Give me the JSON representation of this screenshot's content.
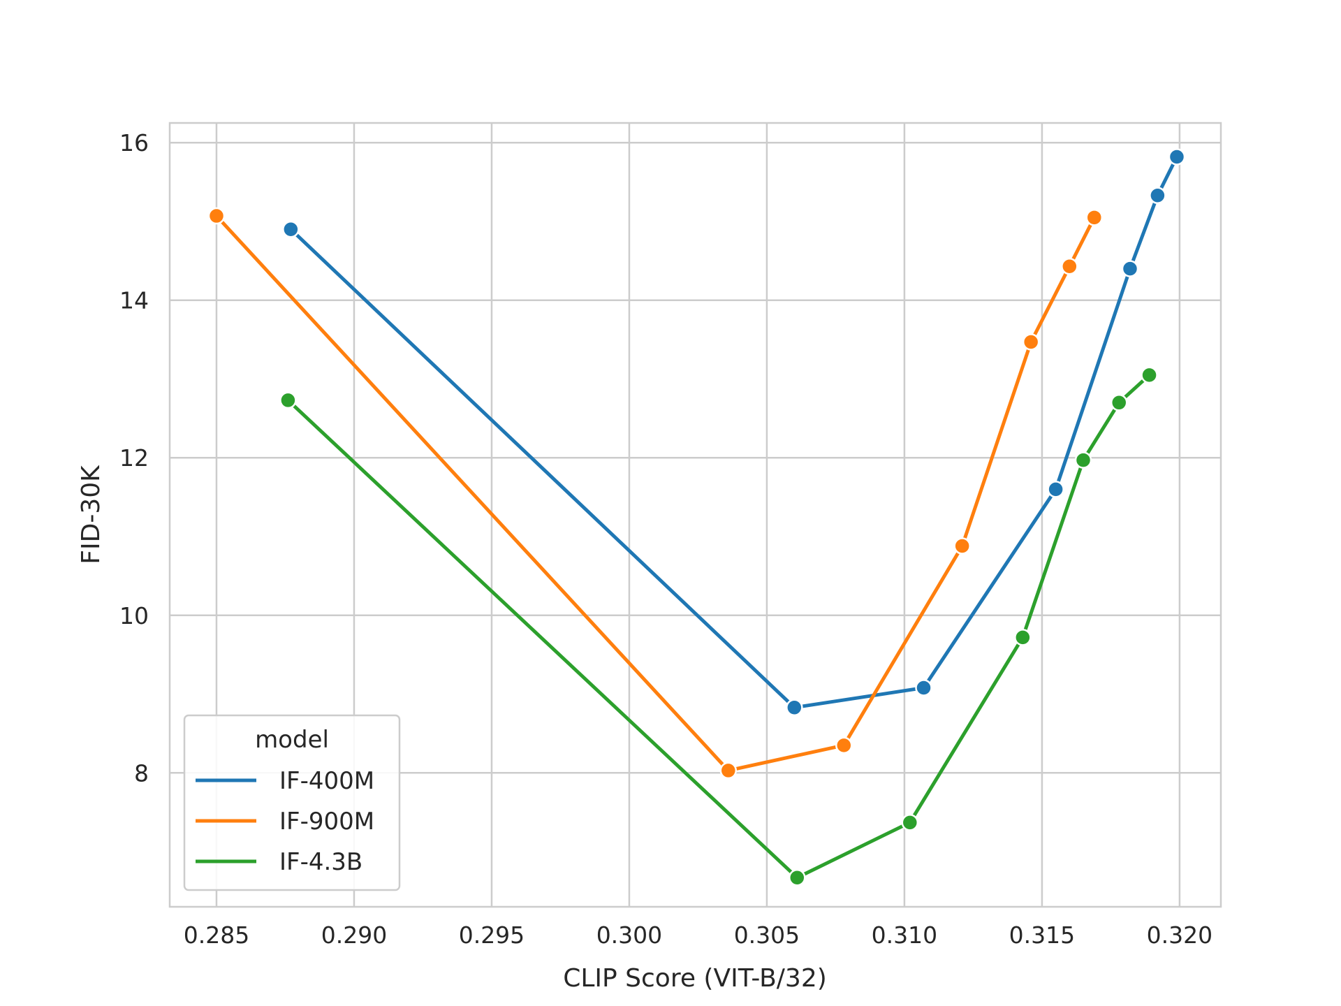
{
  "chart_data": {
    "type": "line",
    "xlabel": "CLIP Score (VIT-B/32)",
    "ylabel": "FID-30K",
    "xlim": [
      0.2833,
      0.3215
    ],
    "ylim": [
      6.3,
      16.25
    ],
    "xticks": [
      0.285,
      0.29,
      0.295,
      0.3,
      0.305,
      0.31,
      0.315,
      0.32
    ],
    "xtick_labels": [
      "0.285",
      "0.290",
      "0.295",
      "0.300",
      "0.305",
      "0.310",
      "0.315",
      "0.320"
    ],
    "yticks": [
      8,
      10,
      12,
      14,
      16
    ],
    "ytick_labels": [
      "8",
      "10",
      "12",
      "14",
      "16"
    ],
    "grid": true,
    "legend": {
      "title": "model",
      "position": "lower-left"
    },
    "series": [
      {
        "name": "IF-400M",
        "color": "#1f77b4",
        "x": [
          0.2877,
          0.306,
          0.3107,
          0.3155,
          0.3182,
          0.3192,
          0.3199
        ],
        "y": [
          14.9,
          8.83,
          9.08,
          11.6,
          14.4,
          15.33,
          15.82
        ]
      },
      {
        "name": "IF-900M",
        "color": "#ff7f0e",
        "x": [
          0.285,
          0.3036,
          0.3078,
          0.3121,
          0.3146,
          0.316,
          0.3169
        ],
        "y": [
          15.07,
          8.03,
          8.35,
          10.88,
          13.47,
          14.43,
          15.05
        ]
      },
      {
        "name": "IF-4.3B",
        "color": "#2ca02c",
        "x": [
          0.2876,
          0.3061,
          0.3102,
          0.3143,
          0.3165,
          0.3178,
          0.3189
        ],
        "y": [
          12.73,
          6.67,
          7.37,
          9.72,
          11.97,
          12.7,
          13.05
        ]
      }
    ]
  }
}
